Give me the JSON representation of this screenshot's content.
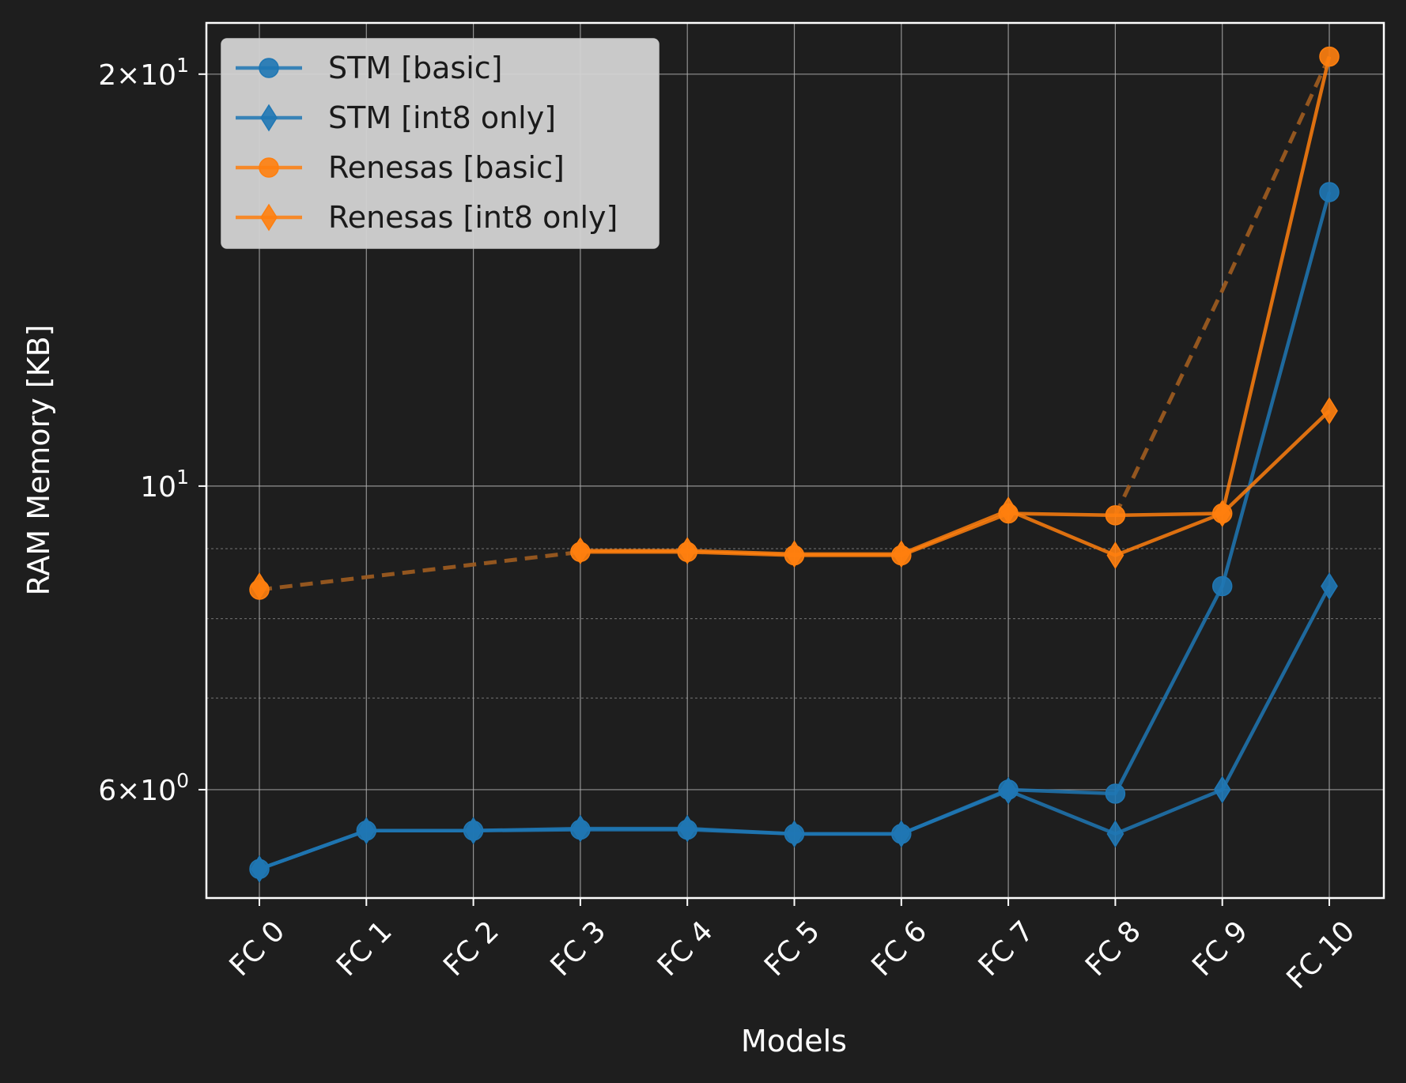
{
  "colors": {
    "background": "#1e1e1e",
    "stm": "#1f77b4",
    "renesas": "#ff7f0e",
    "renesas_fit": "#9a5a20",
    "legend_bg": "#d3d3d3"
  },
  "chart_data": {
    "type": "line",
    "xlabel": "Models",
    "ylabel": "RAM Memory [KB]",
    "yscale": "log",
    "ylim": [
      5.0,
      21.8
    ],
    "categories": [
      "FC 0",
      "FC 1",
      "FC 2",
      "FC 3",
      "FC 4",
      "FC 5",
      "FC 6",
      "FC 7",
      "FC 8",
      "FC 9",
      "FC 10"
    ],
    "yticks": [
      {
        "value": 6,
        "base": "6",
        "exp": "0"
      },
      {
        "value": 10,
        "base": "10",
        "exp": "1"
      },
      {
        "value": 20,
        "base": "2",
        "exp": "1"
      }
    ],
    "grid": true,
    "legend_position": "top-left",
    "series": [
      {
        "name": "STM [basic]",
        "color_key": "stm",
        "marker": "circle",
        "values": [
          5.25,
          5.6,
          5.6,
          5.61,
          5.61,
          5.57,
          5.57,
          6.0,
          5.96,
          8.45,
          16.4
        ]
      },
      {
        "name": "STM [int8 only]",
        "color_key": "stm",
        "marker": "diamond",
        "values": [
          5.25,
          5.6,
          5.6,
          5.62,
          5.62,
          5.57,
          5.57,
          5.99,
          5.57,
          6.0,
          8.45
        ]
      },
      {
        "name": "Renesas [basic]",
        "color_key": "renesas",
        "marker": "circle",
        "values": [
          8.4,
          null,
          null,
          8.95,
          8.95,
          8.9,
          8.9,
          9.55,
          9.52,
          9.55,
          20.6
        ]
      },
      {
        "name": "Renesas [int8 only]",
        "color_key": "renesas",
        "marker": "diamond",
        "values": [
          8.45,
          null,
          null,
          8.97,
          8.97,
          8.92,
          8.92,
          9.6,
          8.9,
          9.55,
          11.35
        ]
      }
    ],
    "dashed_segments": [
      {
        "color_key": "renesas_fit",
        "points": [
          [
            0,
            8.4
          ],
          [
            3,
            8.95
          ]
        ]
      },
      {
        "color_key": "renesas_fit",
        "points": [
          [
            8,
            9.52
          ],
          [
            9,
            13.9
          ],
          [
            10,
            20.6
          ]
        ]
      }
    ]
  }
}
